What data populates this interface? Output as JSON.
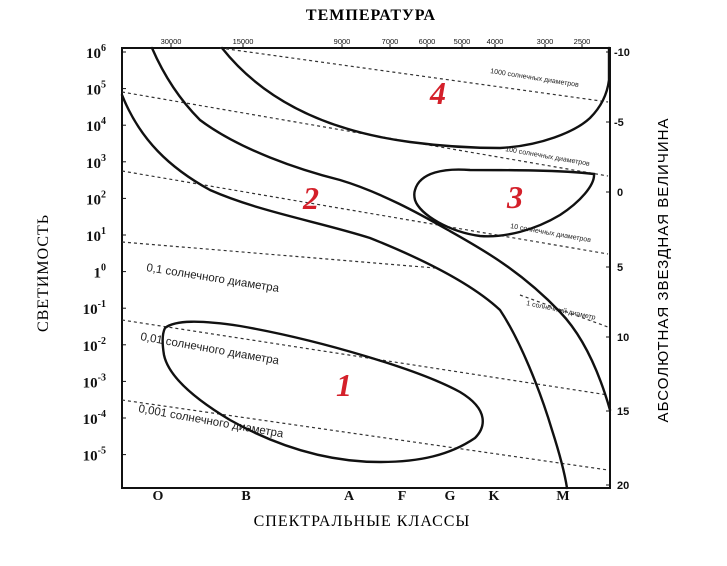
{
  "top_axis": {
    "title": "ТЕМПЕРАТУРА",
    "ticks": [
      "30000",
      "15000",
      "9000",
      "7000",
      "6000",
      "5000",
      "4000",
      "3000",
      "2500"
    ]
  },
  "bottom_axis": {
    "title": "СПЕКТРАЛЬНЫЕ КЛАССЫ",
    "ticks": [
      "O",
      "B",
      "A",
      "F",
      "G",
      "K",
      "M"
    ]
  },
  "left_axis": {
    "title": "СВЕТИМОСТЬ",
    "ticks": [
      {
        "base": "10",
        "exp": "6"
      },
      {
        "base": "10",
        "exp": "5"
      },
      {
        "base": "10",
        "exp": "4"
      },
      {
        "base": "10",
        "exp": "3"
      },
      {
        "base": "10",
        "exp": "2"
      },
      {
        "base": "10",
        "exp": "1"
      },
      {
        "base": "1",
        "exp": "0"
      },
      {
        "base": "10",
        "exp": "-1"
      },
      {
        "base": "10",
        "exp": "-2"
      },
      {
        "base": "10",
        "exp": "-3"
      },
      {
        "base": "10",
        "exp": "-4"
      },
      {
        "base": "10",
        "exp": "-5"
      }
    ]
  },
  "right_axis": {
    "title": "АБСОЛЮТНАЯ ЗВЕЗДНАЯ ВЕЛИЧИНА",
    "ticks": [
      "-10",
      "-5",
      "0",
      "5",
      "10",
      "15",
      "20"
    ]
  },
  "diameter_lines": [
    {
      "label": "1000 солнечных диаметров"
    },
    {
      "label": "100 солнечных диаметров"
    },
    {
      "label": "10 солнечных диаметров"
    },
    {
      "label": "1 солнечный диаметр"
    },
    {
      "label": "0,1 солнечного диаметра"
    },
    {
      "label": "0,01 солнечного диаметра"
    },
    {
      "label": "0,001 солнечного диаметра"
    }
  ],
  "regions": [
    {
      "number": "1",
      "color": "#d4202a"
    },
    {
      "number": "2",
      "color": "#d4202a"
    },
    {
      "number": "3",
      "color": "#d4202a"
    },
    {
      "number": "4",
      "color": "#d4202a"
    }
  ],
  "colors": {
    "ink": "#111111",
    "marker": "#d4202a"
  }
}
